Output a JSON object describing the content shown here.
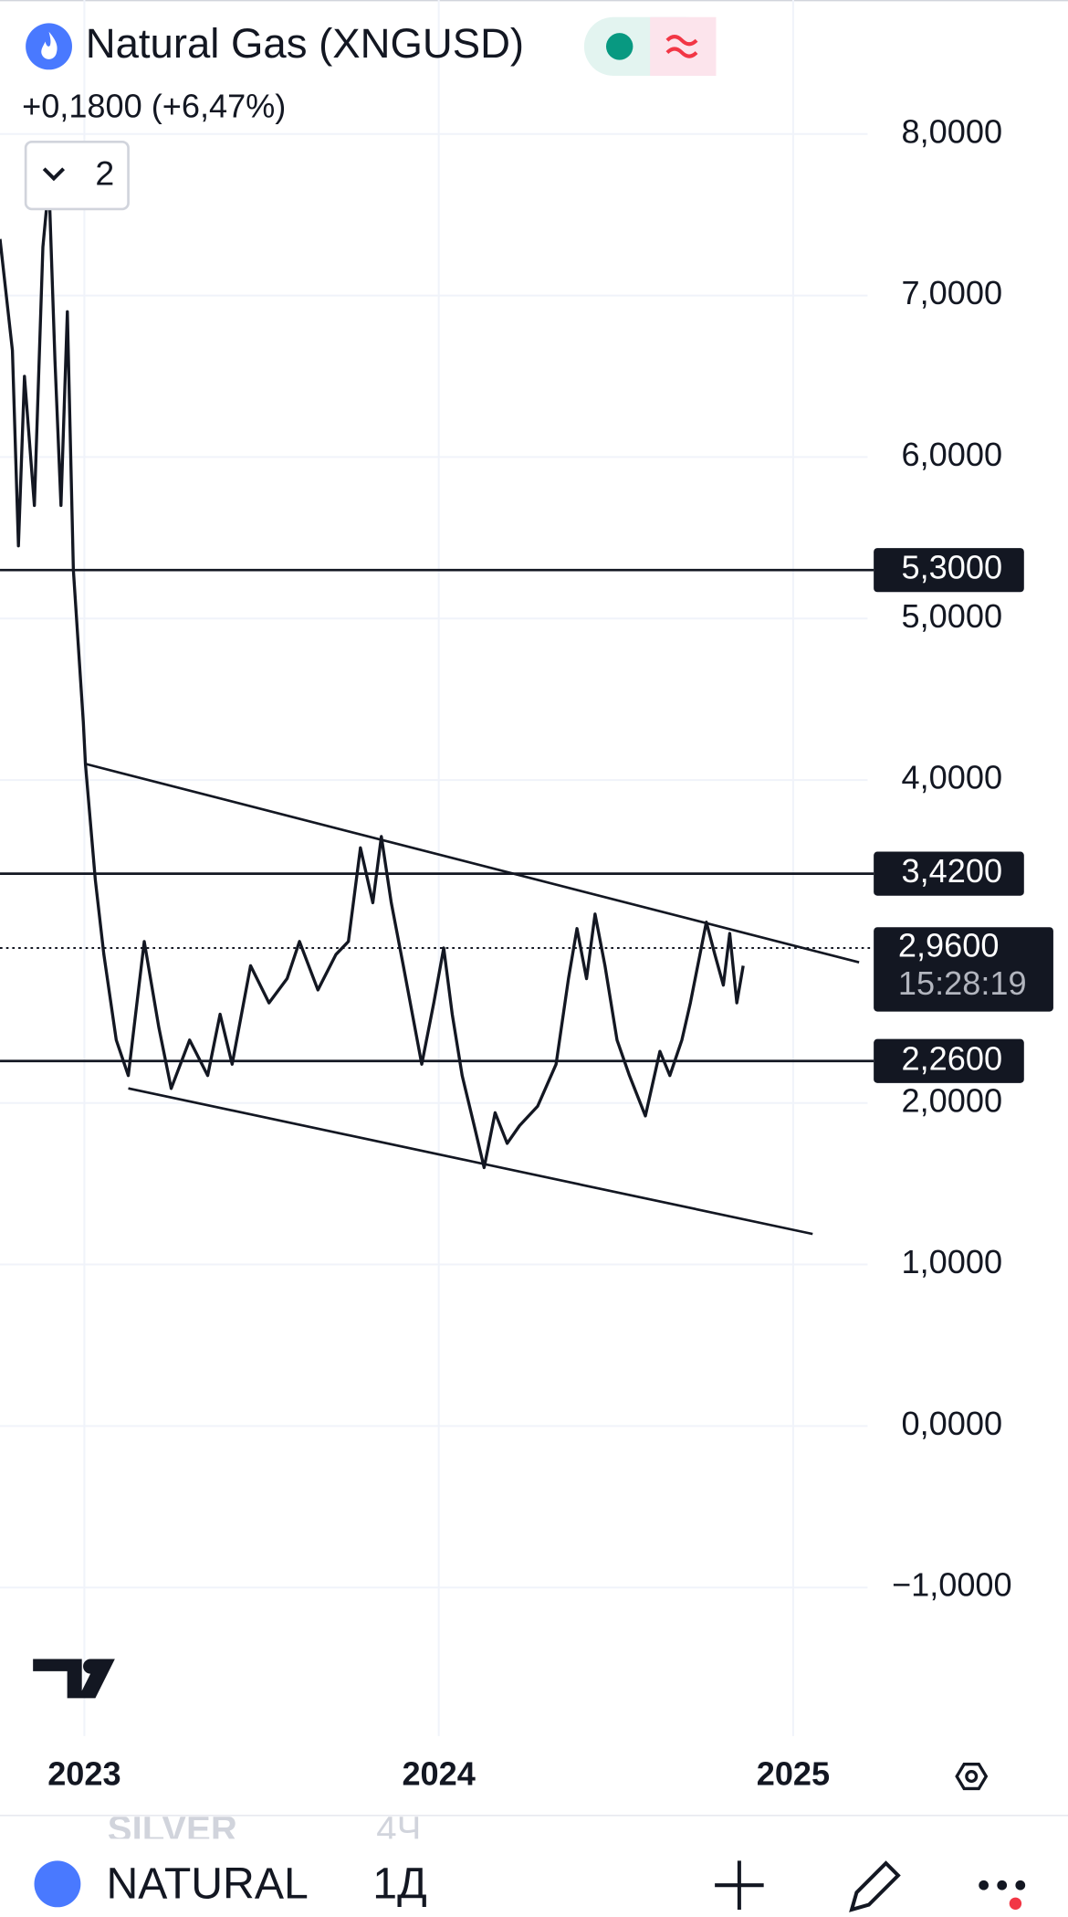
{
  "header": {
    "indicators_count": 2
  },
  "chart_data": {
    "type": "line",
    "title": "Natural Gas (XNGUSD)",
    "subtitle": "+0,1800 (+6,47%)",
    "color": "#131722",
    "grid": true,
    "x": [
      2022.762,
      2022.797,
      2022.814,
      2022.831,
      2022.859,
      2022.883,
      2022.9,
      2022.917,
      2022.934,
      2022.952,
      2022.969,
      2022.997,
      2023.003,
      2023.031,
      2023.055,
      2023.09,
      2023.124,
      2023.169,
      2023.21,
      2023.245,
      2023.297,
      2023.348,
      2023.383,
      2023.417,
      2023.469,
      2023.521,
      2023.572,
      2023.607,
      2023.659,
      2023.71,
      2023.745,
      2023.779,
      2023.814,
      2023.838,
      2023.866,
      2023.9,
      2023.952,
      2023.986,
      2024.014,
      2024.038,
      2024.066,
      2024.1,
      2024.128,
      2024.159,
      2024.193,
      2024.228,
      2024.279,
      2024.331,
      2024.366,
      2024.39,
      2024.417,
      2024.441,
      2024.469,
      2024.503,
      2024.538,
      2024.583,
      2024.624,
      2024.652,
      2024.686,
      2024.71,
      2024.755,
      2024.779,
      2024.803,
      2024.821,
      2024.841,
      2024.859
    ],
    "values": [
      7.35,
      6.66,
      5.45,
      6.5,
      5.7,
      7.3,
      7.7,
      6.6,
      5.7,
      6.9,
      5.3,
      4.36,
      4.1,
      3.38,
      2.92,
      2.39,
      2.17,
      3.0,
      2.47,
      2.09,
      2.39,
      2.17,
      2.55,
      2.24,
      2.85,
      2.62,
      2.77,
      3.0,
      2.7,
      2.92,
      3.0,
      3.58,
      3.24,
      3.65,
      3.24,
      2.85,
      2.24,
      2.62,
      2.96,
      2.55,
      2.17,
      1.86,
      1.6,
      1.94,
      1.75,
      1.86,
      1.98,
      2.24,
      2.77,
      3.08,
      2.77,
      3.17,
      2.85,
      2.39,
      2.17,
      1.92,
      2.32,
      2.17,
      2.39,
      2.62,
      3.12,
      2.92,
      2.73,
      3.05,
      2.62,
      2.85
    ],
    "xlim": [
      2022.762,
      2025.21
    ],
    "xticks": [
      2023,
      2024,
      2025
    ],
    "ylim": [
      -1.92,
      8.83
    ],
    "yticks": [
      {
        "value": -1,
        "label": "−1,0000"
      },
      {
        "value": 0,
        "label": "0,0000"
      },
      {
        "value": 1,
        "label": "1,0000"
      },
      {
        "value": 2,
        "label": "2,0000"
      },
      {
        "value": 4,
        "label": "4,0000"
      },
      {
        "value": 5,
        "label": "5,0000"
      },
      {
        "value": 6,
        "label": "6,0000"
      },
      {
        "value": 7,
        "label": "7,0000"
      },
      {
        "value": 8,
        "label": "8,0000"
      }
    ],
    "levels": [
      {
        "value": 5.3,
        "label": "5,3000"
      },
      {
        "value": 3.42,
        "label": "3,4200"
      },
      {
        "value": 2.26,
        "label": "2,2600"
      }
    ],
    "last_price": {
      "value": 2.96,
      "label": "2,9600"
    },
    "countdown": "15:28:19",
    "trendlines": [
      {
        "x": [
          2023.003,
          2025.186
        ],
        "y": [
          4.1,
          2.871
        ]
      },
      {
        "x": [
          2023.124,
          2025.055
        ],
        "y": [
          2.091,
          1.189
        ]
      }
    ]
  },
  "toolbar": {
    "ghost_symbol": "SILVER",
    "ghost_interval": "4Ч",
    "symbol": "NATURAL",
    "interval": "1Д"
  }
}
